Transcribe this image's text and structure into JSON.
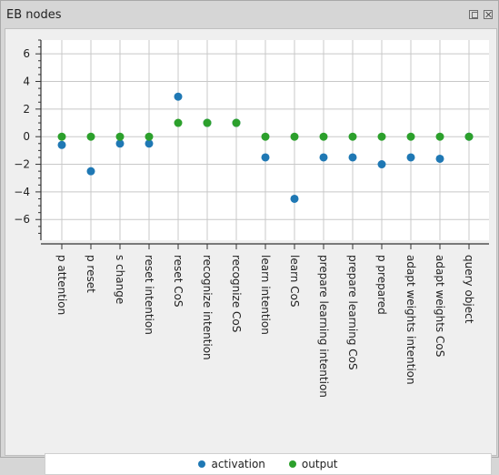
{
  "window": {
    "title": "EB nodes",
    "float_icon": "float-window-icon",
    "close_icon": "close-icon"
  },
  "colors": {
    "activation": "#1f78b4",
    "output": "#2ca02c",
    "grid": "#c8c8c8",
    "plot_bg": "#ffffff"
  },
  "chart_data": {
    "type": "scatter",
    "title": "",
    "xlabel": "",
    "ylabel": "",
    "ylim": [
      -7.5,
      7
    ],
    "yticks": [
      -6,
      -4,
      -2,
      0,
      2,
      4,
      6
    ],
    "grid": true,
    "legend_position": "bottom",
    "categories": [
      "p attention",
      "p reset",
      "s change",
      "reset intention",
      "reset CoS",
      "recognize intention",
      "recognize CoS",
      "learn intention",
      "learn CoS",
      "prepare learning intention",
      "prepare learning CoS",
      "p prepared",
      "adapt weights intention",
      "adapt weights CoS",
      "query object"
    ],
    "series": [
      {
        "name": "activation",
        "values": [
          -0.6,
          -2.5,
          -0.5,
          -0.5,
          2.9,
          1.0,
          1.0,
          -1.5,
          -4.5,
          -1.5,
          -1.5,
          -2.0,
          -1.5,
          -1.6,
          0.0
        ]
      },
      {
        "name": "output",
        "values": [
          0,
          0,
          0,
          0,
          1,
          1,
          1,
          0,
          0,
          0,
          0,
          0,
          0,
          0,
          0
        ]
      }
    ]
  }
}
